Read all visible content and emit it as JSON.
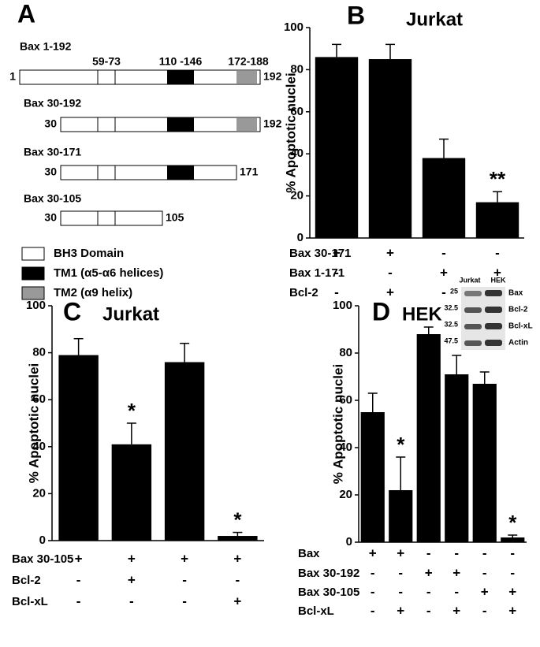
{
  "panel_a": {
    "label": "A",
    "constructs": [
      {
        "name": "Bax 1-192",
        "start": "1",
        "end": "192",
        "regions": [
          "59-73",
          "110 -146",
          "172-188"
        ]
      },
      {
        "name": "Bax 30-192",
        "start": "30",
        "end": "192"
      },
      {
        "name": "Bax 30-171",
        "start": "30",
        "end": "171"
      },
      {
        "name": "Bax 30-105",
        "start": "30",
        "end": "105"
      }
    ],
    "legend": [
      "BH3 Domain",
      "TM1 (α5-α6 helices)",
      "TM2 (α9 helix)"
    ]
  },
  "chart_data": [
    {
      "type": "bar",
      "panel": "B",
      "title": "Jurkat",
      "ylabel": "% Apoptotic nuclei",
      "color": "#000000",
      "categories": [
        null,
        null,
        null,
        null
      ],
      "values": [
        86,
        85,
        38,
        17
      ],
      "errors": [
        6,
        7,
        9,
        5
      ],
      "annotations": [
        null,
        null,
        null,
        "**"
      ],
      "ylim": [
        0,
        100
      ],
      "yticks": [
        0,
        20,
        40,
        60,
        80,
        100
      ],
      "conditions": [
        {
          "name": "Bax 30-171",
          "signs": [
            "+",
            "+",
            "-",
            "-"
          ]
        },
        {
          "name": "Bax 1-171",
          "signs": [
            "-",
            "-",
            "+",
            "+"
          ]
        },
        {
          "name": "Bcl-2",
          "signs": [
            "-",
            "+",
            "-",
            "+"
          ]
        }
      ]
    },
    {
      "type": "bar",
      "panel": "C",
      "title": "Jurkat",
      "ylabel": "% Apoptotic nuclei",
      "color": "#000000",
      "categories": [
        null,
        null,
        null,
        null
      ],
      "values": [
        79,
        41,
        76,
        2
      ],
      "errors": [
        7,
        9,
        8,
        1.5
      ],
      "annotations": [
        null,
        "*",
        null,
        "*"
      ],
      "ylim": [
        0,
        100
      ],
      "yticks": [
        0,
        20,
        40,
        60,
        80,
        100
      ],
      "conditions": [
        {
          "name": "Bax 30-105",
          "signs": [
            "+",
            "+",
            "+",
            "+"
          ]
        },
        {
          "name": "Bcl-2",
          "signs": [
            "-",
            "+",
            "-",
            "-"
          ]
        },
        {
          "name": "Bcl-xL",
          "signs": [
            "-",
            "-",
            "-",
            "+"
          ]
        }
      ]
    },
    {
      "type": "bar",
      "panel": "D",
      "title": "HEK",
      "ylabel": "% Apoptotic nuclei",
      "color": "#000000",
      "categories": [
        null,
        null,
        null,
        null,
        null,
        null
      ],
      "values": [
        55,
        22,
        88,
        71,
        67,
        2
      ],
      "errors": [
        8,
        14,
        3,
        8,
        5,
        1
      ],
      "annotations": [
        null,
        "*",
        null,
        null,
        null,
        "*"
      ],
      "ylim": [
        0,
        100
      ],
      "yticks": [
        0,
        20,
        40,
        60,
        80,
        100
      ],
      "conditions": [
        {
          "name": "Bax",
          "signs": [
            "+",
            "+",
            "-",
            "-",
            "-",
            "-"
          ]
        },
        {
          "name": "Bax 30-192",
          "signs": [
            "-",
            "-",
            "+",
            "+",
            "-",
            "-"
          ]
        },
        {
          "name": "Bax 30-105",
          "signs": [
            "-",
            "-",
            "-",
            "-",
            "+",
            "+"
          ]
        },
        {
          "name": "Bcl-xL",
          "signs": [
            "-",
            "+",
            "-",
            "+",
            "-",
            "+"
          ]
        }
      ],
      "inset": {
        "columns": [
          "Jurkat",
          "HEK"
        ],
        "rows": [
          {
            "marker": "25",
            "label": "Bax"
          },
          {
            "marker": "32.5",
            "label": "Bcl-2"
          },
          {
            "marker": "32.5",
            "label": "Bcl-xL"
          },
          {
            "marker": "47.5",
            "label": "Actin"
          }
        ]
      }
    }
  ]
}
